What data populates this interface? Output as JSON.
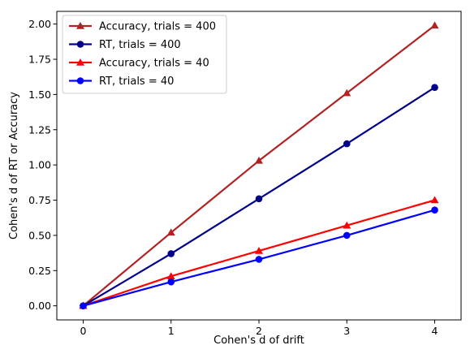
{
  "chart_data": {
    "type": "line",
    "xlabel": "Cohen's d of drift",
    "ylabel": "Cohen's d of RT or Accuracy",
    "xlim": [
      -0.3,
      4.3
    ],
    "ylim": [
      -0.1,
      2.09
    ],
    "xticks": [
      0,
      1,
      2,
      3,
      4
    ],
    "yticks": [
      0.0,
      0.25,
      0.5,
      0.75,
      1.0,
      1.25,
      1.5,
      1.75,
      2.0
    ],
    "xtick_labels": [
      "0",
      "1",
      "2",
      "3",
      "4"
    ],
    "ytick_labels": [
      "0.00",
      "0.25",
      "0.50",
      "0.75",
      "1.00",
      "1.25",
      "1.50",
      "1.75",
      "2.00"
    ],
    "grid": false,
    "legend_position": "top-left",
    "x": [
      0,
      1,
      2,
      3,
      4
    ],
    "series": [
      {
        "name": "Accuracy, trials = 400",
        "values": [
          0.0,
          0.52,
          1.03,
          1.51,
          1.99
        ],
        "color": "#b22222",
        "marker": "triangle"
      },
      {
        "name": "RT, trials = 400",
        "values": [
          0.0,
          0.37,
          0.76,
          1.15,
          1.55
        ],
        "color": "#00008b",
        "marker": "circle"
      },
      {
        "name": "Accuracy, trials = 40",
        "values": [
          0.0,
          0.21,
          0.39,
          0.57,
          0.75
        ],
        "color": "#ff0000",
        "marker": "triangle"
      },
      {
        "name": "RT, trials = 40",
        "values": [
          0.0,
          0.17,
          0.33,
          0.5,
          0.68
        ],
        "color": "#0000ff",
        "marker": "circle"
      }
    ]
  }
}
